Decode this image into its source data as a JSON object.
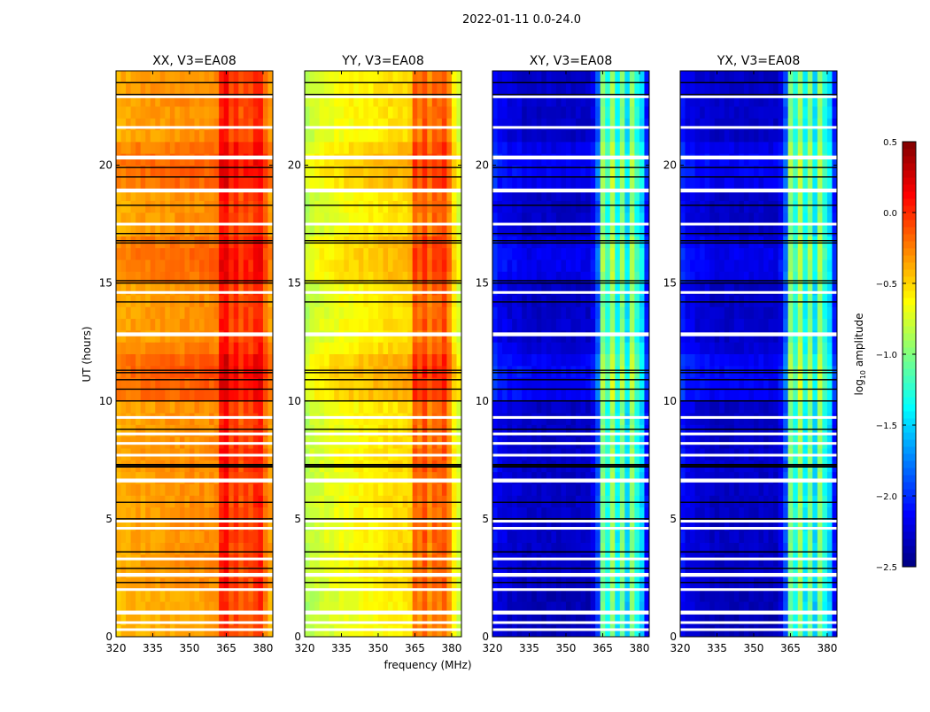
{
  "chart_data": {
    "type": "heatmap",
    "title": "2022-01-11 0.0-24.0",
    "xlabel": "frequency (MHz)",
    "ylabel": "UT (hours)",
    "xlim": [
      320,
      384
    ],
    "ylim": [
      0,
      24
    ],
    "xticks": [
      320,
      335,
      350,
      365,
      380
    ],
    "yticks": [
      0,
      5,
      10,
      15,
      20
    ],
    "colorbar": {
      "label": "log10 amplitude",
      "label_main": "log",
      "label_sub": "10",
      "label_rest": " amplitude",
      "range": [
        -2.5,
        0.5
      ],
      "ticks": [
        "0.5",
        "0.0",
        "−0.5",
        "−1.0",
        "−1.5",
        "−2.0",
        "−2.5"
      ],
      "tick_values": [
        0.5,
        0.0,
        -0.5,
        -1.0,
        -1.5,
        -2.0,
        -2.5
      ],
      "colormap": "jet"
    },
    "freq_bin_centers_mhz": [
      321,
      323,
      325,
      327,
      329,
      331,
      333,
      335,
      337,
      339,
      341,
      343,
      345,
      347,
      349,
      351,
      353,
      355,
      357,
      359,
      361,
      363,
      365,
      367,
      369,
      371,
      373,
      375,
      377,
      379,
      381,
      383
    ],
    "time_bin_hours": 0.5,
    "time_offsets": [
      -0.05,
      -0.05,
      -0.05,
      -0.05,
      0,
      0,
      0,
      0,
      0,
      0,
      0,
      0,
      0,
      0,
      0.02,
      0.02,
      0,
      0,
      0,
      0,
      0.15,
      0.15,
      0.18,
      0.15,
      0.05,
      0,
      0.02,
      0,
      0,
      0,
      0.1,
      0.12,
      0.12,
      0.1,
      0,
      0,
      0,
      0,
      0.12,
      0.15,
      0.15,
      0.1,
      0,
      0,
      0,
      0.02,
      0.02,
      0
    ],
    "flagged_hours_white": [
      0.3,
      0.6,
      1.0,
      1.05,
      2.0,
      2.6,
      2.65,
      3.3,
      4.6,
      4.9,
      6.6,
      6.65,
      7.7,
      8.2,
      8.6,
      9.3,
      12.8,
      12.85,
      14.6,
      17.5,
      18.9,
      18.95,
      20.3,
      20.35,
      21.6,
      22.9
    ],
    "flagged_hours_black": [
      2.3,
      2.9,
      3.6,
      5.0,
      5.7,
      7.2,
      7.25,
      7.3,
      8.8,
      10.0,
      10.5,
      10.9,
      11.2,
      11.3,
      14.2,
      15.0,
      15.1,
      16.7,
      16.8,
      17.1,
      18.3,
      19.5,
      19.9,
      23.0,
      23.5
    ],
    "panels": [
      {
        "title": "XX, V3=EA08",
        "log_amplitude_by_freq": [
          -0.4,
          -0.38,
          -0.37,
          -0.36,
          -0.35,
          -0.35,
          -0.34,
          -0.34,
          -0.33,
          -0.33,
          -0.32,
          -0.32,
          -0.31,
          -0.31,
          -0.3,
          -0.3,
          -0.3,
          -0.29,
          -0.29,
          -0.28,
          -0.28,
          0.05,
          0.1,
          -0.1,
          0.0,
          -0.15,
          -0.05,
          -0.1,
          0.0,
          0.05,
          -0.2,
          -0.35
        ]
      },
      {
        "title": "YY, V3=EA08",
        "log_amplitude_by_freq": [
          -0.85,
          -0.8,
          -0.77,
          -0.74,
          -0.72,
          -0.7,
          -0.68,
          -0.66,
          -0.65,
          -0.63,
          -0.62,
          -0.61,
          -0.6,
          -0.59,
          -0.58,
          -0.57,
          -0.56,
          -0.55,
          -0.54,
          -0.53,
          -0.52,
          -0.5,
          -0.15,
          -0.25,
          -0.1,
          -0.3,
          -0.15,
          -0.2,
          -0.1,
          -0.3,
          -0.6,
          -0.75
        ]
      },
      {
        "title": "XY, V3=EA08",
        "log_amplitude_by_freq": [
          -2.1,
          -2.2,
          -2.2,
          -2.25,
          -2.25,
          -2.25,
          -2.3,
          -2.3,
          -2.3,
          -2.3,
          -2.3,
          -2.3,
          -2.3,
          -2.3,
          -2.3,
          -2.3,
          -2.3,
          -2.3,
          -2.3,
          -2.3,
          -2.2,
          -1.9,
          -1.0,
          -1.3,
          -0.9,
          -1.4,
          -1.0,
          -1.5,
          -0.95,
          -1.3,
          -1.5,
          -2.1
        ]
      },
      {
        "title": "YX, V3=EA08",
        "log_amplitude_by_freq": [
          -2.1,
          -2.2,
          -2.2,
          -2.25,
          -2.25,
          -2.25,
          -2.3,
          -2.3,
          -2.3,
          -2.3,
          -2.3,
          -2.3,
          -2.3,
          -2.3,
          -2.3,
          -2.3,
          -2.3,
          -2.3,
          -2.3,
          -2.3,
          -2.2,
          -1.9,
          -1.0,
          -1.3,
          -0.9,
          -1.4,
          -1.0,
          -1.5,
          -0.95,
          -1.3,
          -1.5,
          -2.1
        ]
      }
    ]
  }
}
